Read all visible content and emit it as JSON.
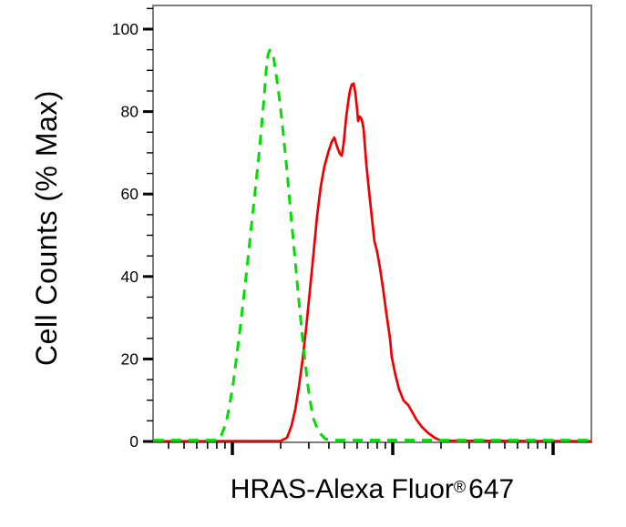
{
  "figure": {
    "background_color": "#ffffff",
    "frame_color": "#7d7d7d",
    "tick_color": "#000000",
    "text_color": "#000000"
  },
  "chart_data": {
    "type": "line",
    "subtype": "flow-cytometry-overlay-histogram",
    "title": "",
    "ylabel": "Cell Counts (% Max)",
    "xlabel": {
      "main": "HRAS-Alexa Fluor",
      "registered": "®",
      "tail": "647"
    },
    "grid": false,
    "legend": "none",
    "x_axis": {
      "scale": "log",
      "numeric_labels_visible": false,
      "range_decades": [
        0.51,
        3.24
      ],
      "major_tick_decades": [
        1,
        2,
        3
      ],
      "minor_tick_decades": [
        0.602,
        0.699,
        0.778,
        0.845,
        0.903,
        0.954,
        1.301,
        1.477,
        1.602,
        1.699,
        1.778,
        1.845,
        1.903,
        1.954,
        2.301,
        2.477,
        2.602,
        2.699,
        2.778,
        2.845,
        2.903,
        2.954
      ]
    },
    "y_axis": {
      "scale": "linear",
      "range": [
        0,
        105.7
      ],
      "major_ticks": [
        0,
        20,
        40,
        60,
        80,
        100
      ],
      "major_tick_labels": [
        "0",
        "20",
        "40",
        "60",
        "80",
        "100"
      ],
      "minor_ticks": [
        5,
        10,
        15,
        25,
        30,
        35,
        45,
        50,
        55,
        65,
        70,
        75,
        85,
        90,
        95,
        105
      ]
    },
    "series": [
      {
        "name": "green-dashed-control",
        "color": "#00dd00",
        "line_style": "dashed",
        "line_width": 3,
        "peak_percent_max": 95,
        "points": [
          [
            0.51,
            0.3
          ],
          [
            0.9,
            0.3
          ],
          [
            0.926,
            1.0
          ],
          [
            0.96,
            4.4
          ],
          [
            0.983,
            8.8
          ],
          [
            1.006,
            14.3
          ],
          [
            1.028,
            21.0
          ],
          [
            1.051,
            28.3
          ],
          [
            1.074,
            36.0
          ],
          [
            1.097,
            44.2
          ],
          [
            1.119,
            52.3
          ],
          [
            1.142,
            60.7
          ],
          [
            1.165,
            69.1
          ],
          [
            1.182,
            76.2
          ],
          [
            1.199,
            83.9
          ],
          [
            1.21,
            89.8
          ],
          [
            1.222,
            93.8
          ],
          [
            1.233,
            94.9
          ],
          [
            1.244,
            94.7
          ],
          [
            1.256,
            93.4
          ],
          [
            1.267,
            90.5
          ],
          [
            1.284,
            86.1
          ],
          [
            1.301,
            80.6
          ],
          [
            1.318,
            74.4
          ],
          [
            1.335,
            67.8
          ],
          [
            1.352,
            60.7
          ],
          [
            1.369,
            53.4
          ],
          [
            1.386,
            46.4
          ],
          [
            1.403,
            39.1
          ],
          [
            1.42,
            32.0
          ],
          [
            1.438,
            24.9
          ],
          [
            1.455,
            18.8
          ],
          [
            1.472,
            13.2
          ],
          [
            1.489,
            8.8
          ],
          [
            1.506,
            5.5
          ],
          [
            1.528,
            3.3
          ],
          [
            1.551,
            1.8
          ],
          [
            1.58,
            0.6
          ],
          [
            1.62,
            0.3
          ],
          [
            3.24,
            0.3
          ]
        ]
      },
      {
        "name": "red-solid-sample",
        "color": "#ee0000",
        "line_style": "solid",
        "line_width": 2.7,
        "peak_percent_max": 87,
        "points": [
          [
            0.51,
            0.05
          ],
          [
            1.3,
            0.1
          ],
          [
            1.341,
            0.9
          ],
          [
            1.369,
            3.8
          ],
          [
            1.392,
            7.7
          ],
          [
            1.415,
            13.2
          ],
          [
            1.438,
            19.9
          ],
          [
            1.46,
            27.6
          ],
          [
            1.483,
            36.4
          ],
          [
            1.506,
            45.7
          ],
          [
            1.528,
            54.5
          ],
          [
            1.551,
            61.8
          ],
          [
            1.574,
            66.7
          ],
          [
            1.597,
            70.0
          ],
          [
            1.619,
            72.6
          ],
          [
            1.636,
            73.7
          ],
          [
            1.653,
            71.5
          ],
          [
            1.67,
            69.8
          ],
          [
            1.682,
            69.3
          ],
          [
            1.693,
            72.0
          ],
          [
            1.71,
            78.8
          ],
          [
            1.722,
            82.3
          ],
          [
            1.733,
            85.0
          ],
          [
            1.744,
            86.5
          ],
          [
            1.756,
            86.8
          ],
          [
            1.767,
            84.5
          ],
          [
            1.778,
            80.6
          ],
          [
            1.784,
            77.7
          ],
          [
            1.795,
            78.8
          ],
          [
            1.807,
            78.1
          ],
          [
            1.818,
            75.9
          ],
          [
            1.835,
            67.3
          ],
          [
            1.852,
            60.7
          ],
          [
            1.869,
            54.7
          ],
          [
            1.886,
            48.6
          ],
          [
            1.903,
            46.0
          ],
          [
            1.92,
            42.2
          ],
          [
            1.938,
            37.5
          ],
          [
            1.96,
            31.1
          ],
          [
            1.983,
            25.0
          ],
          [
            1.994,
            20.5
          ],
          [
            2.017,
            16.1
          ],
          [
            2.04,
            12.6
          ],
          [
            2.068,
            9.9
          ],
          [
            2.097,
            8.8
          ],
          [
            2.119,
            7.3
          ],
          [
            2.148,
            5.3
          ],
          [
            2.182,
            3.5
          ],
          [
            2.222,
            2.0
          ],
          [
            2.261,
            0.9
          ],
          [
            2.301,
            0.2
          ],
          [
            3.24,
            0.05
          ]
        ]
      }
    ]
  }
}
